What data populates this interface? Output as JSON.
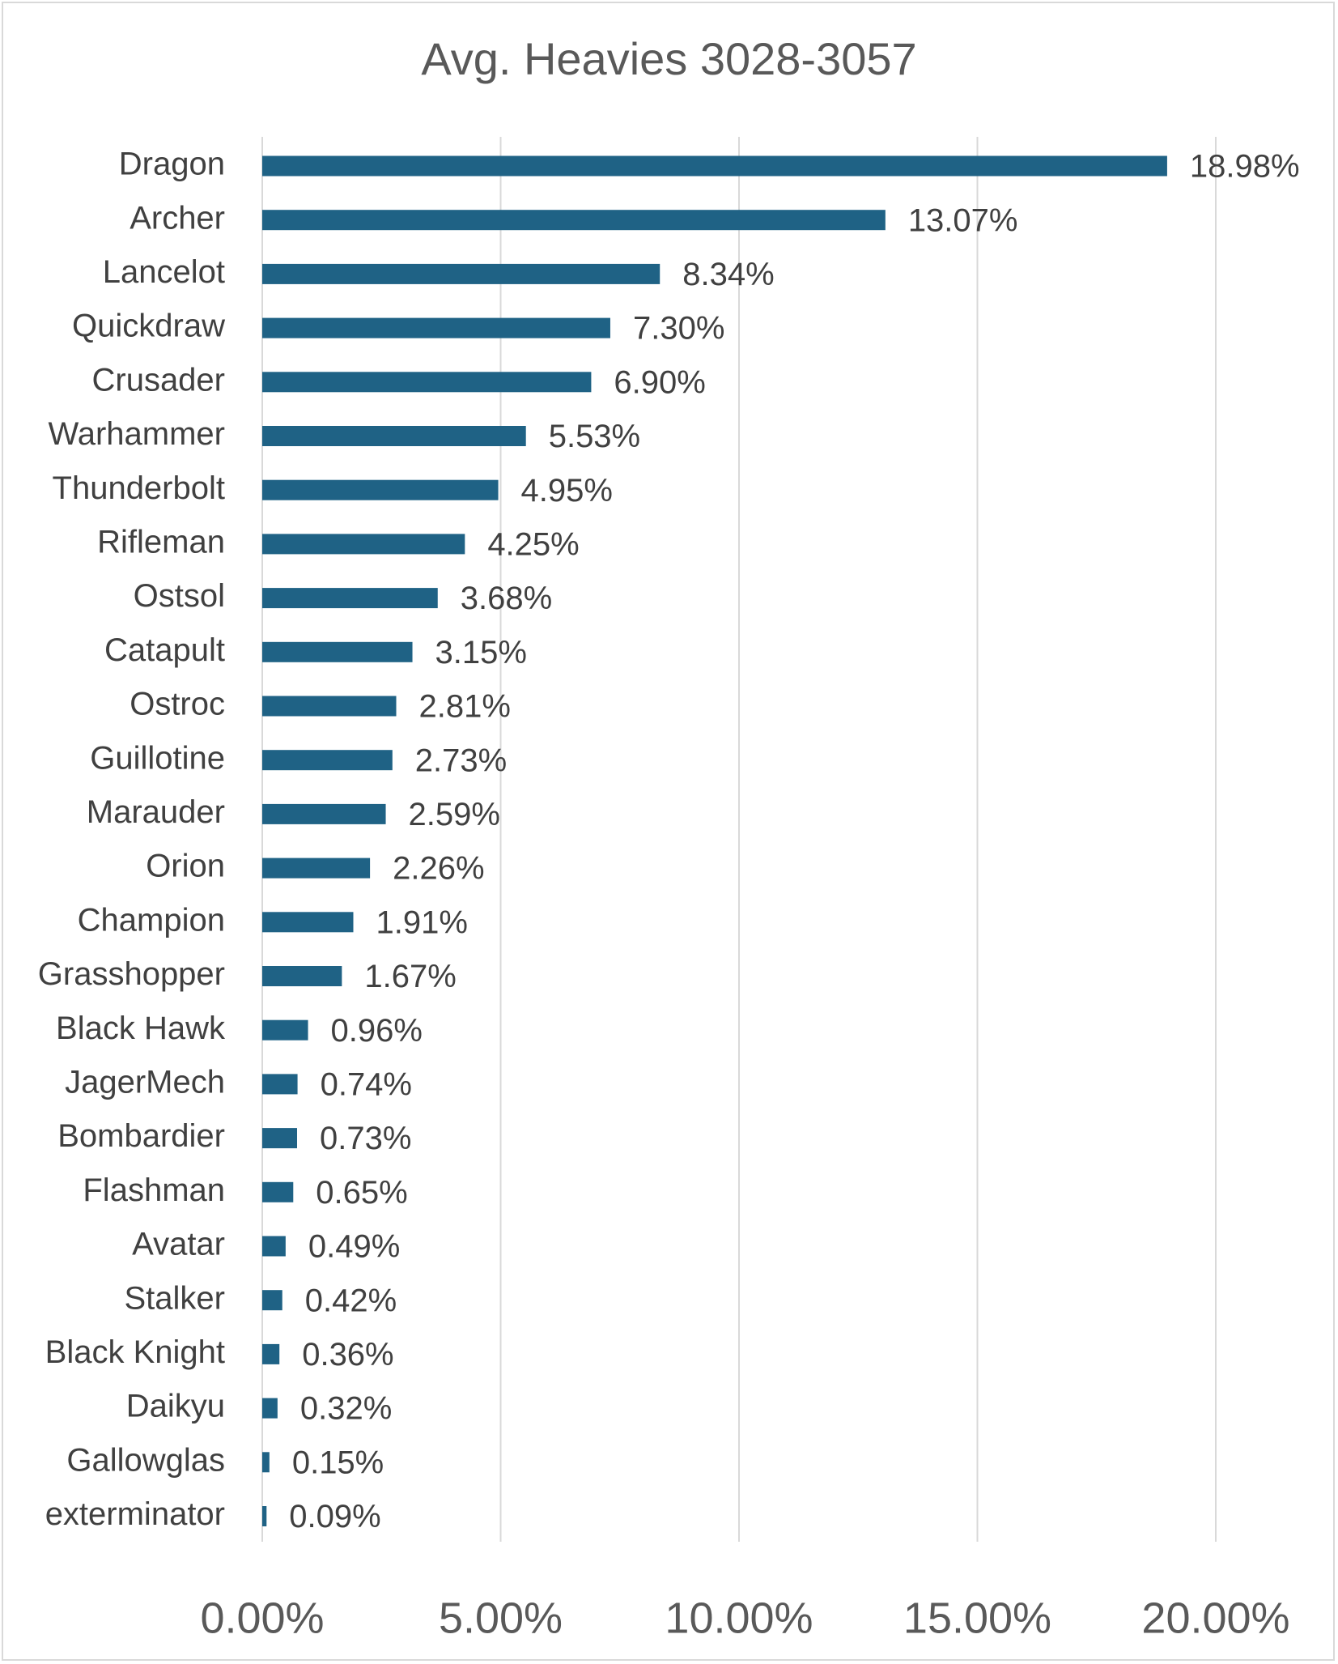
{
  "chart_data": {
    "type": "bar",
    "orientation": "horizontal",
    "title": "Avg. Heavies 3028-3057",
    "xlabel": "",
    "ylabel": "",
    "xlim": [
      0,
      20
    ],
    "grid": true,
    "legend": "none",
    "bar_color": "#1f6285",
    "categories": [
      "Dragon",
      "Archer",
      "Lancelot",
      "Quickdraw",
      "Crusader",
      "Warhammer",
      "Thunderbolt",
      "Rifleman",
      "Ostsol",
      "Catapult",
      "Ostroc",
      "Guillotine",
      "Marauder",
      "Orion",
      "Champion",
      "Grasshopper",
      "Black Hawk",
      "JagerMech",
      "Bombardier",
      "Flashman",
      "Avatar",
      "Stalker",
      "Black Knight",
      "Daikyu",
      "Gallowglas",
      "exterminator"
    ],
    "values": [
      18.98,
      13.07,
      8.34,
      7.3,
      6.9,
      5.53,
      4.95,
      4.25,
      3.68,
      3.15,
      2.81,
      2.73,
      2.59,
      2.26,
      1.91,
      1.67,
      0.96,
      0.74,
      0.73,
      0.65,
      0.49,
      0.42,
      0.36,
      0.32,
      0.15,
      0.09
    ],
    "data_labels": [
      "18.98%",
      "13.07%",
      "8.34%",
      "7.30%",
      "6.90%",
      "5.53%",
      "4.95%",
      "4.25%",
      "3.68%",
      "3.15%",
      "2.81%",
      "2.73%",
      "2.59%",
      "2.26%",
      "1.91%",
      "1.67%",
      "0.96%",
      "0.74%",
      "0.73%",
      "0.65%",
      "0.49%",
      "0.42%",
      "0.36%",
      "0.32%",
      "0.15%",
      "0.09%"
    ],
    "ticks": [
      0,
      5,
      10,
      15,
      20
    ],
    "tick_labels": [
      "0.00%",
      "5.00%",
      "10.00%",
      "15.00%",
      "20.00%"
    ]
  }
}
